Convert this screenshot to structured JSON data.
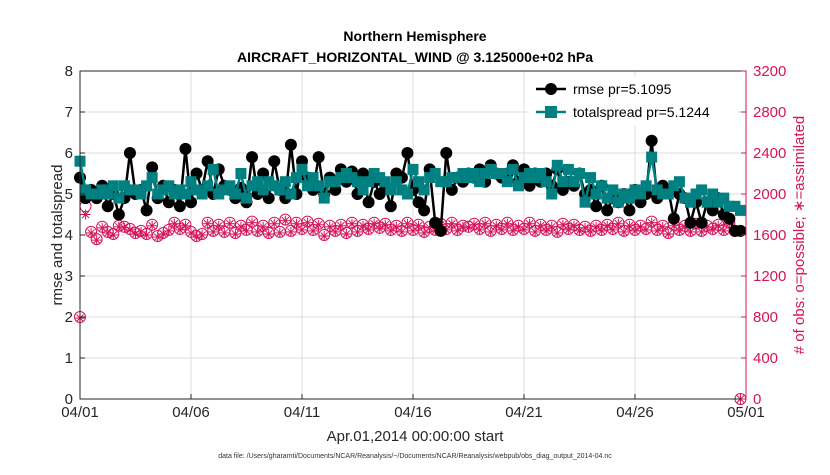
{
  "chart_data": {
    "type": "line",
    "title": "Northern Hemisphere",
    "subtitle": "AIRCRAFT_HORIZONTAL_WIND @ 3.125000e+02 hPa",
    "xlabel": "Apr.01,2014 00:00:00 start",
    "ylabel_left": "rmse and totalspread",
    "ylabel_right": "# of obs: o=possible; ∗=assimilated",
    "footnote": "data file: /Users/gharamti/Documents/NCAR/Reanalysis/~/Documents/NCAR/Reanalysis/webpub/obs_diag_output_2014-04.nc",
    "xlim": [
      0,
      30
    ],
    "x_ticks": [
      0,
      5,
      10,
      15,
      20,
      25,
      30
    ],
    "x_tick_labels": [
      "04/01",
      "04/06",
      "04/11",
      "04/16",
      "04/21",
      "04/26",
      "05/01"
    ],
    "ylim_left": [
      0,
      8
    ],
    "y_ticks_left": [
      "0",
      "1",
      "2",
      "3",
      "4",
      "5",
      "6",
      "7",
      "8"
    ],
    "ylim_right": [
      0,
      3200
    ],
    "y_ticks_right": [
      "0",
      "400",
      "800",
      "1200",
      "1600",
      "2000",
      "2400",
      "2800",
      "3200"
    ],
    "legend": {
      "placement": "top-right",
      "entries": [
        "rmse pr=5.1095",
        "totalspread pr=5.1244"
      ]
    },
    "colors": {
      "rmse": "#000000",
      "totalspread": "#008080",
      "obs": "#d4145a",
      "axis_right": "#d4145a"
    },
    "x": [
      0.0,
      0.25,
      0.5,
      0.75,
      1.0,
      1.25,
      1.5,
      1.75,
      2.0,
      2.25,
      2.5,
      2.75,
      3.0,
      3.25,
      3.5,
      3.75,
      4.0,
      4.25,
      4.5,
      4.75,
      5.0,
      5.25,
      5.5,
      5.75,
      6.0,
      6.25,
      6.5,
      6.75,
      7.0,
      7.25,
      7.5,
      7.75,
      8.0,
      8.25,
      8.5,
      8.75,
      9.0,
      9.25,
      9.5,
      9.75,
      10.0,
      10.25,
      10.5,
      10.75,
      11.0,
      11.25,
      11.5,
      11.75,
      12.0,
      12.25,
      12.5,
      12.75,
      13.0,
      13.25,
      13.5,
      13.75,
      14.0,
      14.25,
      14.5,
      14.75,
      15.0,
      15.25,
      15.5,
      15.75,
      16.0,
      16.25,
      16.5,
      16.75,
      17.0,
      17.25,
      17.5,
      17.75,
      18.0,
      18.25,
      18.5,
      18.75,
      19.0,
      19.25,
      19.5,
      19.75,
      20.0,
      20.25,
      20.5,
      20.75,
      21.0,
      21.25,
      21.5,
      21.75,
      22.0,
      22.25,
      22.5,
      22.75,
      23.0,
      23.25,
      23.5,
      23.75,
      24.0,
      24.25,
      24.5,
      24.75,
      25.0,
      25.25,
      25.5,
      25.75,
      26.0,
      26.25,
      26.5,
      26.75,
      27.0,
      27.25,
      27.5,
      27.75,
      28.0,
      28.25,
      28.5,
      28.75,
      29.0,
      29.25,
      29.5,
      29.75
    ],
    "series": [
      {
        "name": "rmse",
        "values": [
          5.4,
          4.9,
          5.1,
          4.9,
          5.2,
          4.7,
          5.0,
          4.5,
          4.9,
          6.0,
          5.0,
          5.1,
          4.6,
          5.65,
          4.9,
          5.2,
          4.8,
          5.1,
          4.7,
          6.1,
          4.8,
          5.5,
          5.1,
          5.8,
          5.0,
          5.6,
          5.2,
          5.1,
          4.9,
          5.15,
          4.8,
          5.9,
          5.0,
          5.5,
          4.9,
          5.8,
          5.1,
          4.9,
          6.2,
          5.0,
          5.8,
          5.4,
          5.1,
          5.9,
          5.0,
          5.4,
          5.1,
          5.6,
          5.3,
          5.55,
          5.0,
          5.5,
          4.8,
          5.3,
          5.0,
          5.2,
          4.7,
          5.5,
          5.4,
          6.0,
          5.1,
          4.8,
          4.6,
          5.6,
          4.3,
          4.1,
          6.0,
          5.1,
          5.4,
          5.3,
          5.5,
          5.4,
          5.6,
          5.3,
          5.7,
          5.5,
          5.4,
          5.5,
          5.7,
          5.3,
          5.6,
          5.2,
          5.5,
          5.3,
          5.5,
          5.2,
          5.6,
          5.1,
          5.3,
          5.2,
          5.5,
          5.0,
          5.1,
          4.7,
          5.2,
          4.6,
          4.9,
          4.8,
          5.0,
          4.6,
          5.1,
          4.8,
          5.0,
          6.3,
          4.9,
          5.2,
          5.1,
          4.4,
          5.0,
          4.9,
          4.3,
          4.8,
          4.3,
          4.8,
          4.6,
          4.9,
          4.5,
          4.4,
          4.1,
          4.1
        ]
      },
      {
        "name": "totalspread",
        "values": [
          5.8,
          5.1,
          5.0,
          5.0,
          5.1,
          5.0,
          5.2,
          4.9,
          5.2,
          5.1,
          5.1,
          5.0,
          5.2,
          5.4,
          5.0,
          5.1,
          5.2,
          5.0,
          5.1,
          5.0,
          5.3,
          5.1,
          5.0,
          5.2,
          5.6,
          5.0,
          5.1,
          5.2,
          5.0,
          5.5,
          4.9,
          5.2,
          5.3,
          5.1,
          5.3,
          5.2,
          5.1,
          5.3,
          5.0,
          5.4,
          5.6,
          5.2,
          5.4,
          5.2,
          4.9,
          5.3,
          5.3,
          5.4,
          5.5,
          5.4,
          5.3,
          5.1,
          5.3,
          5.5,
          5.4,
          5.3,
          5.1,
          5.3,
          5.1,
          5.0,
          5.6,
          5.3,
          5.1,
          5.4,
          5.5,
          5.3,
          5.3,
          5.4,
          5.4,
          5.5,
          5.4,
          5.5,
          5.3,
          5.5,
          5.6,
          5.5,
          5.5,
          5.3,
          5.6,
          5.2,
          5.4,
          5.5,
          5.4,
          5.5,
          5.3,
          5.0,
          5.7,
          5.3,
          5.6,
          5.3,
          5.5,
          4.8,
          5.4,
          5.0,
          5.2,
          4.9,
          5.1,
          4.8,
          5.0,
          4.9,
          5.1,
          5.0,
          5.2,
          5.9,
          5.1,
          5.0,
          5.0,
          5.2,
          5.3,
          4.9,
          4.8,
          5.0,
          5.1,
          4.8,
          5.0,
          4.8,
          4.9,
          4.7,
          4.7,
          4.6
        ]
      },
      {
        "name": "# of obs possible",
        "values": [
          800,
          1880,
          1630,
          1560,
          1680,
          1630,
          1610,
          1690,
          1680,
          1660,
          1620,
          1640,
          1610,
          1700,
          1590,
          1620,
          1650,
          1720,
          1660,
          1700,
          1630,
          1590,
          1610,
          1720,
          1640,
          1700,
          1630,
          1720,
          1620,
          1690,
          1650,
          1730,
          1640,
          1690,
          1620,
          1720,
          1630,
          1750,
          1640,
          1720,
          1660,
          1730,
          1650,
          1710,
          1600,
          1690,
          1640,
          1700,
          1620,
          1720,
          1640,
          1700,
          1660,
          1720,
          1670,
          1710,
          1650,
          1690,
          1640,
          1720,
          1650,
          1700,
          1630,
          1680,
          1650,
          1710,
          1660,
          1720,
          1650,
          1690,
          1680,
          1710,
          1660,
          1720,
          1640,
          1700,
          1660,
          1720,
          1650,
          1690,
          1660,
          1720,
          1640,
          1700,
          1650,
          1690,
          1630,
          1710,
          1660,
          1700,
          1650,
          1680,
          1640,
          1690,
          1650,
          1700,
          1660,
          1720,
          1640,
          1700,
          1650,
          1690,
          1660,
          1730,
          1650,
          1690,
          1620,
          1700,
          1650,
          1690,
          1640,
          1710,
          1640,
          1690,
          1660,
          1700,
          1650,
          1720,
          1640,
          0
        ]
      },
      {
        "name": "# of obs assimilated",
        "values": [
          790,
          1800,
          1620,
          1550,
          1670,
          1620,
          1600,
          1680,
          1670,
          1650,
          1610,
          1630,
          1600,
          1690,
          1580,
          1610,
          1640,
          1710,
          1650,
          1690,
          1620,
          1580,
          1600,
          1710,
          1630,
          1690,
          1620,
          1710,
          1610,
          1680,
          1640,
          1720,
          1630,
          1680,
          1610,
          1710,
          1620,
          1740,
          1630,
          1710,
          1650,
          1720,
          1640,
          1700,
          1590,
          1680,
          1630,
          1690,
          1610,
          1710,
          1630,
          1690,
          1650,
          1710,
          1660,
          1700,
          1640,
          1680,
          1630,
          1710,
          1640,
          1690,
          1620,
          1670,
          1640,
          1700,
          1650,
          1710,
          1640,
          1680,
          1670,
          1700,
          1650,
          1710,
          1630,
          1690,
          1650,
          1710,
          1640,
          1680,
          1650,
          1710,
          1630,
          1690,
          1640,
          1680,
          1620,
          1700,
          1650,
          1690,
          1640,
          1670,
          1630,
          1680,
          1640,
          1690,
          1650,
          1710,
          1630,
          1690,
          1640,
          1680,
          1650,
          1720,
          1640,
          1680,
          1610,
          1690,
          1640,
          1680,
          1630,
          1700,
          1630,
          1680,
          1650,
          1690,
          1640,
          1710,
          1630,
          0
        ]
      }
    ]
  }
}
